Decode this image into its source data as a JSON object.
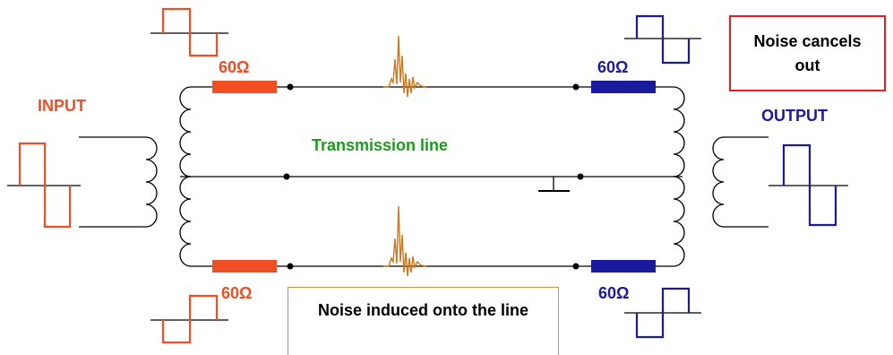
{
  "labels": {
    "input": "INPUT",
    "output": "OUTPUT",
    "transmission_line": "Transmission line",
    "resistor_top_left": "60Ω",
    "resistor_top_right": "60Ω",
    "resistor_bottom_left": "60Ω",
    "resistor_bottom_right": "60Ω"
  },
  "callouts": {
    "noise_cancels": "Noise cancels out",
    "noise_induced": "Noise induced onto the line"
  },
  "colors": {
    "input_signal": "#f04e23",
    "output_signal": "#1a1a9c",
    "noise_spike": "#c8781e",
    "transmission_label": "#1a9c1a",
    "noise_cancels_border": "#e02020",
    "noise_induced_border": "#d8903c",
    "wire": "#000000"
  }
}
